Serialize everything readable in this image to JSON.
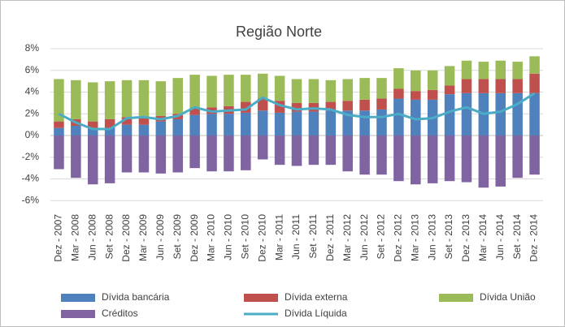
{
  "chart_data": {
    "type": "bar",
    "stacked": true,
    "title": "Região Norte",
    "categories": [
      "Dez - 2007",
      "Mar - 2008",
      "Jun - 2008",
      "Set - 2008",
      "Dez - 2008",
      "Mar - 2009",
      "Jun - 2009",
      "Set - 2009",
      "Dez - 2009",
      "Mar - 2010",
      "Jun - 2010",
      "Set - 2010",
      "Dez - 2010",
      "Mar - 2011",
      "Jun - 2011",
      "Set - 2011",
      "Dez - 2011",
      "Mar - 2012",
      "Jun - 2012",
      "Set - 2012",
      "Dez - 2012",
      "Mar - 2013",
      "Jun - 2013",
      "Set - 2013",
      "Dez - 2013",
      "Mar - 2014",
      "Jun - 2014",
      "Set - 2014",
      "Dez - 2014"
    ],
    "series": [
      {
        "name": "Dívida bancária",
        "color": "#4f81bd",
        "values": [
          0.7,
          0.9,
          0.6,
          0.7,
          1.0,
          1.0,
          1.3,
          1.5,
          1.9,
          2.0,
          2.0,
          2.1,
          2.3,
          2.1,
          2.2,
          2.2,
          2.3,
          2.3,
          2.3,
          2.4,
          3.4,
          3.3,
          3.3,
          3.8,
          3.9,
          3.9,
          3.9,
          3.9,
          3.9
        ]
      },
      {
        "name": "Dívida externa",
        "color": "#c0504d",
        "values": [
          0.6,
          0.6,
          0.7,
          0.8,
          0.7,
          0.7,
          0.5,
          0.5,
          0.6,
          0.6,
          0.7,
          1.0,
          1.1,
          1.1,
          0.8,
          0.8,
          0.8,
          0.9,
          1.0,
          1.0,
          0.9,
          0.8,
          0.9,
          0.8,
          1.3,
          1.3,
          1.3,
          1.3,
          1.8
        ]
      },
      {
        "name": "Dívida União",
        "color": "#9bbb59",
        "values": [
          3.9,
          3.6,
          3.6,
          3.5,
          3.4,
          3.4,
          3.2,
          3.3,
          3.1,
          2.9,
          2.9,
          2.5,
          2.3,
          2.3,
          2.2,
          2.2,
          2.0,
          2.0,
          2.0,
          1.9,
          1.9,
          1.9,
          1.8,
          1.8,
          1.7,
          1.6,
          1.7,
          1.6,
          1.6
        ]
      },
      {
        "name": "Créditos",
        "color": "#8064a2",
        "values": [
          -3.1,
          -3.9,
          -4.5,
          -4.4,
          -3.4,
          -3.4,
          -3.5,
          -3.4,
          -3.0,
          -3.3,
          -3.3,
          -3.2,
          -2.2,
          -2.7,
          -2.8,
          -2.7,
          -2.7,
          -3.3,
          -3.6,
          -3.6,
          -4.2,
          -4.5,
          -4.4,
          -4.2,
          -4.3,
          -4.8,
          -4.7,
          -3.9,
          -3.6
        ]
      },
      {
        "name": "Dívida Líquida",
        "type": "line",
        "color": "#4bacc6",
        "values": [
          2.0,
          1.2,
          0.6,
          0.6,
          1.6,
          1.7,
          1.5,
          1.8,
          2.6,
          2.2,
          2.3,
          2.4,
          3.5,
          2.8,
          2.4,
          2.5,
          2.4,
          1.9,
          1.7,
          1.7,
          2.0,
          1.5,
          1.6,
          2.2,
          2.6,
          2.0,
          2.2,
          2.9,
          3.9
        ]
      }
    ],
    "ylim": [
      -6.8,
      8
    ],
    "yticks": [
      {
        "value": -6,
        "label": "-6%"
      },
      {
        "value": -4,
        "label": "-4%"
      },
      {
        "value": -2,
        "label": "-2%"
      },
      {
        "value": 0,
        "label": "0%"
      },
      {
        "value": 2,
        "label": "2%"
      },
      {
        "value": 4,
        "label": "4%"
      },
      {
        "value": 6,
        "label": "6%"
      },
      {
        "value": 8,
        "label": "8%"
      }
    ],
    "grid": true
  }
}
